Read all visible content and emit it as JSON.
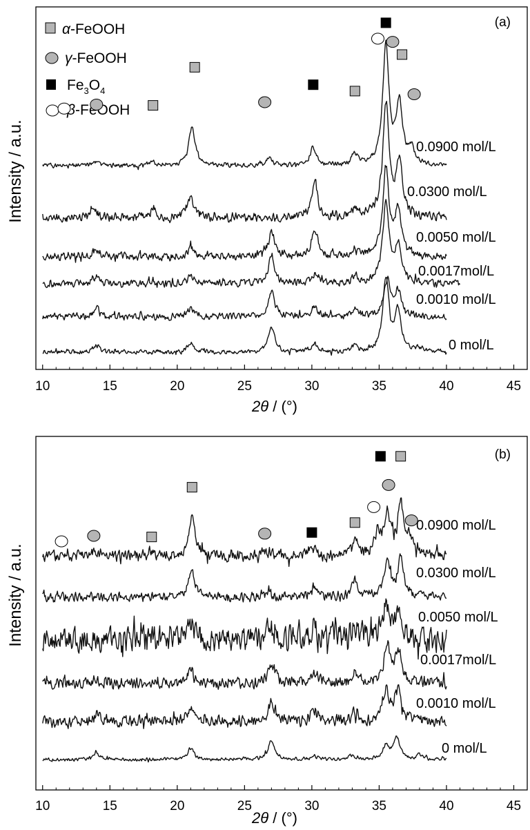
{
  "panels": [
    {
      "id": "a",
      "panel_label": "(a)",
      "ylabel": "Intensity / a.u.",
      "xlabel_sym": "2θ",
      "xlabel_rest": " / (°)",
      "legend": [
        {
          "marker": "square-gray",
          "prefix": "α",
          "text": "-FeOOH"
        },
        {
          "marker": "circle-gray",
          "prefix": "γ",
          "text": "-FeOOH"
        },
        {
          "marker": "square-black",
          "prefix": "",
          "text": "Fe",
          "sub1": "3",
          "mid": "O",
          "sub2": "4"
        },
        {
          "marker": "circle-white",
          "prefix": "β",
          "text": "-FeOOH"
        }
      ]
    },
    {
      "id": "b",
      "panel_label": "(b)",
      "ylabel": "Intensity / a.u.",
      "xlabel_sym": "2θ",
      "xlabel_rest": " / (°)"
    }
  ],
  "chart_data": [
    {
      "type": "line",
      "title": "(a)",
      "xlabel": "2θ / (°)",
      "ylabel": "Intensity / a.u.",
      "xlim": [
        9.5,
        46
      ],
      "xticks": [
        10,
        15,
        20,
        25,
        30,
        35,
        40,
        45
      ],
      "grid": false,
      "legend_placement": "top-left",
      "series": [
        {
          "name": "0 mol/L",
          "x_range": [
            10,
            40
          ],
          "peaks": [
            {
              "x": 14.0,
              "h": 0.28
            },
            {
              "x": 21.0,
              "h": 0.35
            },
            {
              "x": 27.0,
              "h": 1.05
            },
            {
              "x": 30.2,
              "h": 0.33
            },
            {
              "x": 33.2,
              "h": 0.22
            },
            {
              "x": 35.5,
              "h": 2.9
            },
            {
              "x": 36.4,
              "h": 1.6
            },
            {
              "x": 38.0,
              "h": 0.15
            }
          ]
        },
        {
          "name": "0.0010 mol/L",
          "x_range": [
            10,
            40
          ],
          "peaks": [
            {
              "x": 14.0,
              "h": 0.32
            },
            {
              "x": 21.0,
              "h": 0.32
            },
            {
              "x": 27.0,
              "h": 1.0
            },
            {
              "x": 30.2,
              "h": 0.35
            },
            {
              "x": 33.2,
              "h": 0.3
            },
            {
              "x": 35.6,
              "h": 1.45
            },
            {
              "x": 36.4,
              "h": 1.0
            }
          ]
        },
        {
          "name": "0.0017mol/L",
          "x_range": [
            10,
            41
          ],
          "peaks": [
            {
              "x": 14.0,
              "h": 0.35
            },
            {
              "x": 21.0,
              "h": 0.32
            },
            {
              "x": 27.0,
              "h": 1.1
            },
            {
              "x": 30.2,
              "h": 0.4
            },
            {
              "x": 33.2,
              "h": 0.3
            },
            {
              "x": 35.5,
              "h": 3.2
            },
            {
              "x": 36.4,
              "h": 1.5
            }
          ]
        },
        {
          "name": "0.0050 mol/L",
          "x_range": [
            10,
            40
          ],
          "peaks": [
            {
              "x": 14.0,
              "h": 0.35
            },
            {
              "x": 21.0,
              "h": 0.4
            },
            {
              "x": 27.0,
              "h": 1.0
            },
            {
              "x": 30.2,
              "h": 1.1
            },
            {
              "x": 33.2,
              "h": 0.3
            },
            {
              "x": 35.5,
              "h": 3.5
            },
            {
              "x": 36.4,
              "h": 1.8
            }
          ]
        },
        {
          "name": "0.0300 mol/L",
          "x_range": [
            10,
            40
          ],
          "peaks": [
            {
              "x": 13.8,
              "h": 0.35
            },
            {
              "x": 18.2,
              "h": 0.3
            },
            {
              "x": 21.0,
              "h": 0.75
            },
            {
              "x": 30.2,
              "h": 1.45
            },
            {
              "x": 33.2,
              "h": 0.3
            },
            {
              "x": 35.5,
              "h": 4.6
            },
            {
              "x": 36.5,
              "h": 2.2
            }
          ]
        },
        {
          "name": "0.0900 mol/L",
          "x_range": [
            10,
            40
          ],
          "peaks": [
            {
              "x": 14.0,
              "h": 0.15
            },
            {
              "x": 18.2,
              "h": 0.15
            },
            {
              "x": 21.1,
              "h": 1.6
            },
            {
              "x": 26.8,
              "h": 0.3
            },
            {
              "x": 30.1,
              "h": 0.75
            },
            {
              "x": 33.2,
              "h": 0.4
            },
            {
              "x": 35.5,
              "h": 4.8
            },
            {
              "x": 36.5,
              "h": 2.4
            },
            {
              "x": 37.4,
              "h": 0.6
            }
          ]
        }
      ],
      "markers": [
        {
          "x": 11.6,
          "y": 5.4,
          "kind": "circle-white"
        },
        {
          "x": 14.0,
          "y": 5.65,
          "kind": "circle-gray"
        },
        {
          "x": 18.2,
          "y": 5.6,
          "kind": "square-gray"
        },
        {
          "x": 21.3,
          "y": 8.0,
          "kind": "square-gray"
        },
        {
          "x": 26.5,
          "y": 5.8,
          "kind": "circle-gray"
        },
        {
          "x": 30.1,
          "y": 6.9,
          "kind": "square-black"
        },
        {
          "x": 33.2,
          "y": 6.5,
          "kind": "square-gray"
        },
        {
          "x": 34.9,
          "y": 9.8,
          "kind": "circle-white"
        },
        {
          "x": 35.5,
          "y": 10.8,
          "kind": "square-black"
        },
        {
          "x": 36.0,
          "y": 9.6,
          "kind": "circle-gray"
        },
        {
          "x": 36.7,
          "y": 8.8,
          "kind": "square-gray"
        },
        {
          "x": 37.6,
          "y": 6.3,
          "kind": "circle-gray"
        }
      ]
    },
    {
      "type": "line",
      "title": "(b)",
      "xlabel": "2θ / (°)",
      "ylabel": "Intensity / a.u.",
      "xlim": [
        9.5,
        46
      ],
      "xticks": [
        10,
        15,
        20,
        25,
        30,
        35,
        40,
        45
      ],
      "grid": false,
      "series": [
        {
          "name": "0 mol/L",
          "x_range": [
            10,
            40
          ],
          "peaks": [
            {
              "x": 14.0,
              "h": 0.3
            },
            {
              "x": 21.0,
              "h": 0.5
            },
            {
              "x": 27.0,
              "h": 0.9
            },
            {
              "x": 30.2,
              "h": 0.15
            },
            {
              "x": 33.0,
              "h": 0.2
            },
            {
              "x": 35.5,
              "h": 0.6
            },
            {
              "x": 36.3,
              "h": 1.0
            },
            {
              "x": 38.0,
              "h": 0.2
            }
          ]
        },
        {
          "name": "0.0010 mol/L",
          "x_range": [
            10,
            40
          ],
          "peaks": [
            {
              "x": 14.0,
              "h": 0.3
            },
            {
              "x": 21.0,
              "h": 0.55
            },
            {
              "x": 27.0,
              "h": 0.85
            },
            {
              "x": 30.2,
              "h": 0.5
            },
            {
              "x": 33.2,
              "h": 0.4
            },
            {
              "x": 35.5,
              "h": 1.4
            },
            {
              "x": 36.4,
              "h": 1.4
            }
          ]
        },
        {
          "name": "0.0017mol/L",
          "x_range": [
            10,
            40
          ],
          "peaks": [
            {
              "x": 14.0,
              "h": 0.2
            },
            {
              "x": 21.0,
              "h": 0.6
            },
            {
              "x": 27.0,
              "h": 0.9
            },
            {
              "x": 30.2,
              "h": 0.55
            },
            {
              "x": 33.2,
              "h": 0.5
            },
            {
              "x": 35.6,
              "h": 1.7
            },
            {
              "x": 36.4,
              "h": 1.4
            }
          ]
        },
        {
          "name": "0.0050 mol/L",
          "x_range": [
            10,
            40
          ],
          "peaks": [
            {
              "x": 21.0,
              "h": 0.8
            },
            {
              "x": 26.8,
              "h": 0.7
            },
            {
              "x": 30.1,
              "h": 0.6
            },
            {
              "x": 31.8,
              "h": 0.3
            },
            {
              "x": 33.2,
              "h": 0.55
            },
            {
              "x": 35.5,
              "h": 1.5
            },
            {
              "x": 36.4,
              "h": 1.3
            }
          ]
        },
        {
          "name": "0.0300 mol/L",
          "x_range": [
            10,
            40
          ],
          "peaks": [
            {
              "x": 21.1,
              "h": 1.2
            },
            {
              "x": 26.6,
              "h": 0.3
            },
            {
              "x": 30.1,
              "h": 0.45
            },
            {
              "x": 33.2,
              "h": 0.7
            },
            {
              "x": 35.6,
              "h": 1.5
            },
            {
              "x": 36.6,
              "h": 1.7
            }
          ]
        },
        {
          "name": "0.0900 mol/L",
          "x_range": [
            10,
            40
          ],
          "peaks": [
            {
              "x": 14.0,
              "h": 0.2
            },
            {
              "x": 18.1,
              "h": 0.25
            },
            {
              "x": 21.1,
              "h": 1.75
            },
            {
              "x": 26.5,
              "h": 0.25
            },
            {
              "x": 30.0,
              "h": 0.35
            },
            {
              "x": 33.2,
              "h": 0.75
            },
            {
              "x": 34.9,
              "h": 0.9
            },
            {
              "x": 35.6,
              "h": 1.8
            },
            {
              "x": 36.6,
              "h": 2.2
            },
            {
              "x": 37.3,
              "h": 0.7
            }
          ]
        }
      ],
      "markers": [
        {
          "x": 11.4,
          "y": 7.05,
          "kind": "circle-white"
        },
        {
          "x": 13.8,
          "y": 7.3,
          "kind": "circle-gray"
        },
        {
          "x": 18.1,
          "y": 7.25,
          "kind": "square-gray"
        },
        {
          "x": 21.1,
          "y": 9.5,
          "kind": "square-gray"
        },
        {
          "x": 26.5,
          "y": 7.4,
          "kind": "circle-gray"
        },
        {
          "x": 30.0,
          "y": 7.45,
          "kind": "square-black"
        },
        {
          "x": 33.2,
          "y": 7.9,
          "kind": "square-gray"
        },
        {
          "x": 34.6,
          "y": 8.6,
          "kind": "circle-white"
        },
        {
          "x": 35.1,
          "y": 10.9,
          "kind": "square-black"
        },
        {
          "x": 35.7,
          "y": 9.6,
          "kind": "circle-gray"
        },
        {
          "x": 36.6,
          "y": 10.9,
          "kind": "square-gray"
        },
        {
          "x": 37.4,
          "y": 8.0,
          "kind": "circle-gray"
        }
      ]
    }
  ]
}
